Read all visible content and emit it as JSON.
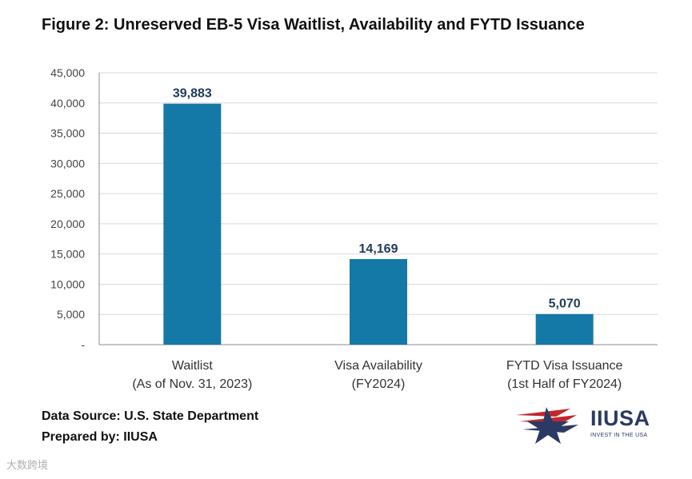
{
  "page": {
    "title": "Figure 2: Unreserved EB-5 Visa Waitlist, Availability and FYTD Issuance",
    "source": "Data Source: U.S. State Department",
    "prepared_by": "Prepared by: IIUSA",
    "logo_text": "IIUSA",
    "logo_tagline": "INVEST IN THE USA",
    "watermark": "大数跨境"
  },
  "chart_data": {
    "type": "bar",
    "title": "Figure 2: Unreserved EB-5 Visa Waitlist, Availability and FYTD Issuance",
    "categories": [
      [
        "Waitlist",
        "(As of Nov. 31, 2023)"
      ],
      [
        "Visa Availability",
        "(FY2024)"
      ],
      [
        "FYTD Visa Issuance",
        "(1st Half of FY2024)"
      ]
    ],
    "values": [
      39883,
      14169,
      5070
    ],
    "data_labels": [
      "39,883",
      "14,169",
      "5,070"
    ],
    "ylim": [
      0,
      45000
    ],
    "yticks": [
      0,
      5000,
      10000,
      15000,
      20000,
      25000,
      30000,
      35000,
      40000,
      45000
    ],
    "ytick_labels": [
      "-",
      "5,000",
      "10,000",
      "15,000",
      "20,000",
      "25,000",
      "30,000",
      "35,000",
      "40,000",
      "45,000"
    ],
    "xlabel": "",
    "ylabel": "",
    "grid": true,
    "colors": {
      "bar": "#1479a6",
      "label": "#1f3b5a",
      "grid": "#d9d9d9",
      "axis": "#8c8c8c",
      "tick_text": "#444444"
    }
  }
}
